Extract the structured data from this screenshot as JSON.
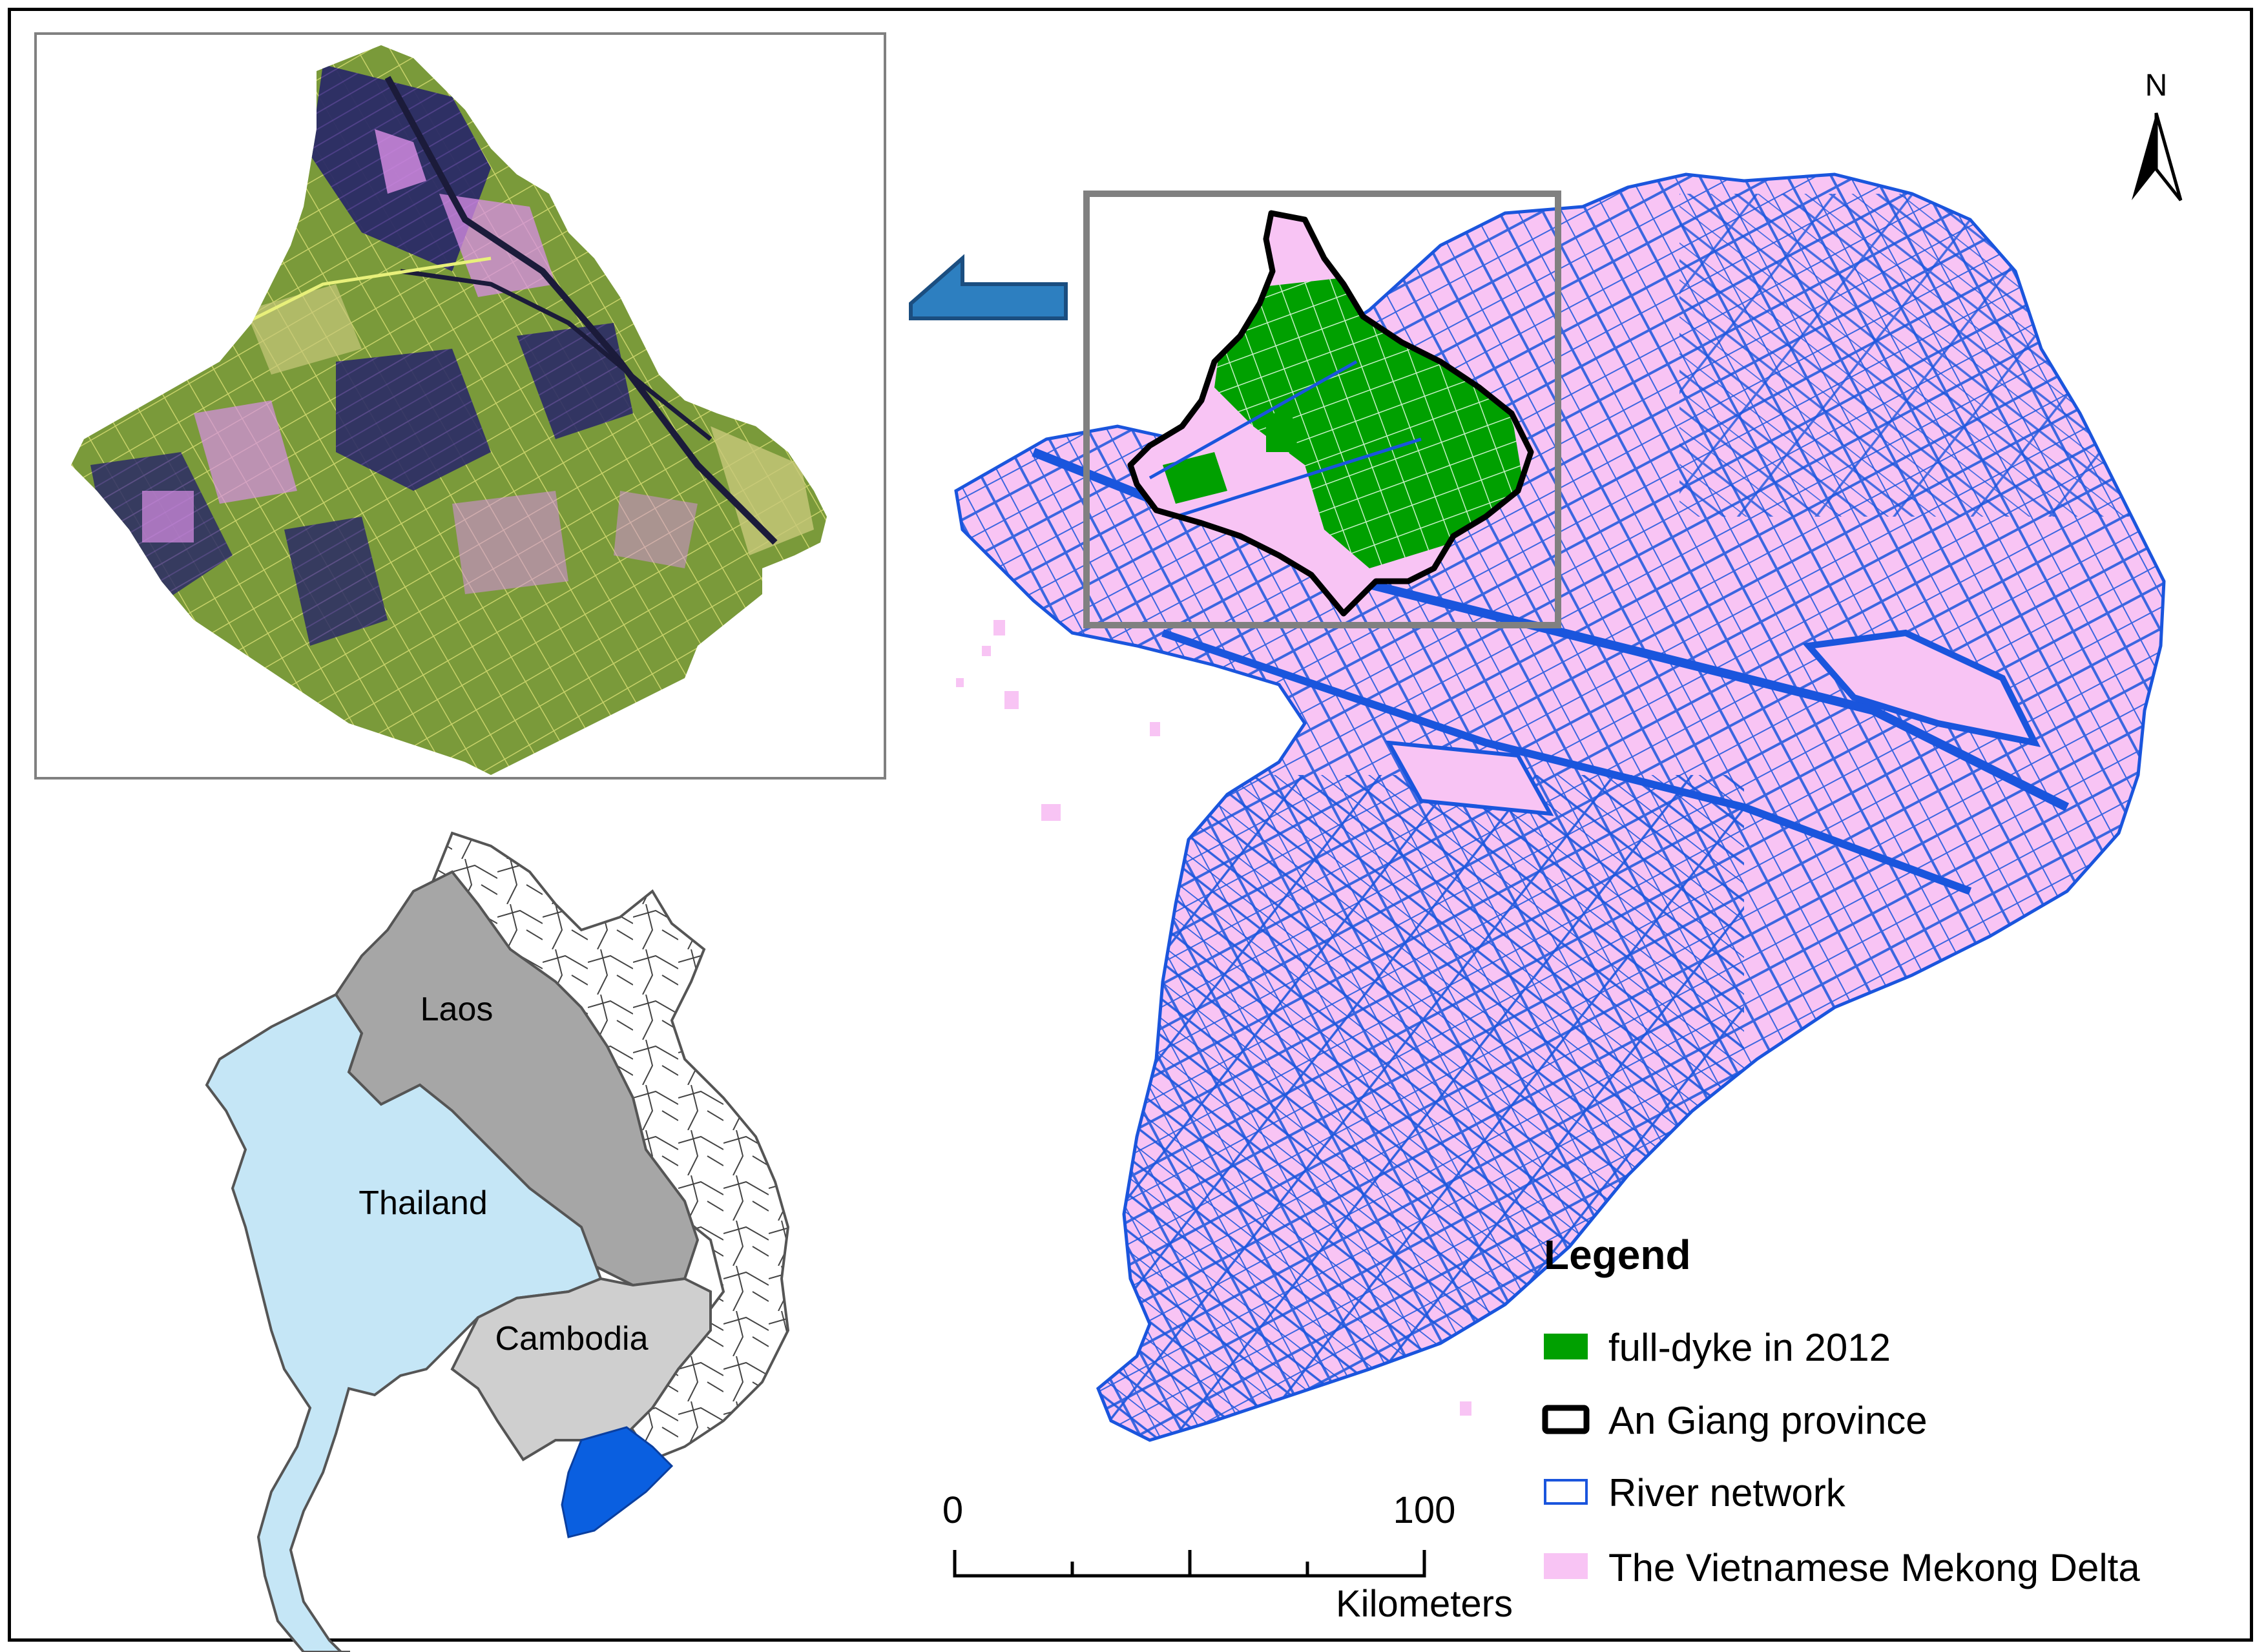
{
  "north_arrow": {
    "label": "N"
  },
  "countries": [
    {
      "id": "laos",
      "label": "Laos",
      "color": "#a6a6a6"
    },
    {
      "id": "thailand",
      "label": "Thailand",
      "color": "#c5e6f6"
    },
    {
      "id": "cambodia",
      "label": "Cambodia",
      "color": "#cfcfcf"
    }
  ],
  "legend": {
    "title": "Legend",
    "items": [
      {
        "label": "full-dyke  in 2012",
        "swatch": "#00a000"
      },
      {
        "label": "An Giang province",
        "swatch": "outline-black"
      },
      {
        "label": "River network",
        "swatch": "outline-blue"
      },
      {
        "label": "The Vietnamese Mekong Delta",
        "swatch": "#f8c4f4"
      }
    ]
  },
  "scale_bar": {
    "start": "0",
    "end": "100",
    "unit": "Kilometers"
  },
  "colors": {
    "delta_fill": "#f8c4f4",
    "river": "#1a55dd",
    "dyke": "#00a000",
    "province_outline": "#000000",
    "highlight_box": "#808080",
    "arrow": "#2d7fc0",
    "vn_delta_small": "#0a5fe0",
    "satellite_green": "#7a9a3a",
    "satellite_purple": "#2a2a66",
    "satellite_pink": "#d98ee6"
  }
}
